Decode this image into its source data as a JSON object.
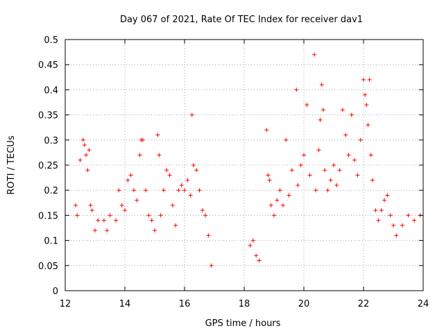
{
  "chart_data": {
    "type": "scatter",
    "title": "Day 067 of 2021, Rate Of TEC Index for receiver dav1",
    "xlabel": "GPS time / hours",
    "ylabel": "ROTI / TECUs",
    "xlim": [
      12,
      24
    ],
    "ylim": [
      0,
      0.5
    ],
    "x_ticks": [
      12,
      14,
      16,
      18,
      20,
      22,
      24
    ],
    "x_tick_labels": [
      "12",
      "14",
      "16",
      "18",
      "20",
      "22",
      "24"
    ],
    "y_ticks": [
      0,
      0.05,
      0.1,
      0.15,
      0.2,
      0.25,
      0.3,
      0.35,
      0.4,
      0.45,
      0.5
    ],
    "y_tick_labels": [
      "0",
      "0.05",
      "0.1",
      "0.15",
      "0.2",
      "0.25",
      "0.3",
      "0.35",
      "0.4",
      "0.45",
      "0.5"
    ],
    "grid": true,
    "marker": "+",
    "color": "#ff0000",
    "series": [
      {
        "points": [
          [
            12.35,
            0.17
          ],
          [
            12.4,
            0.15
          ],
          [
            12.5,
            0.26
          ],
          [
            12.6,
            0.3
          ],
          [
            12.65,
            0.29
          ],
          [
            12.7,
            0.27
          ],
          [
            12.75,
            0.24
          ],
          [
            12.8,
            0.28
          ],
          [
            12.85,
            0.17
          ],
          [
            12.9,
            0.16
          ],
          [
            13.0,
            0.12
          ],
          [
            13.1,
            0.14
          ],
          [
            13.3,
            0.14
          ],
          [
            13.4,
            0.12
          ],
          [
            13.5,
            0.15
          ],
          [
            13.7,
            0.14
          ],
          [
            13.8,
            0.2
          ],
          [
            13.9,
            0.17
          ],
          [
            14.0,
            0.16
          ],
          [
            14.1,
            0.22
          ],
          [
            14.2,
            0.23
          ],
          [
            14.3,
            0.2
          ],
          [
            14.4,
            0.18
          ],
          [
            14.5,
            0.27
          ],
          [
            14.55,
            0.3
          ],
          [
            14.6,
            0.3
          ],
          [
            14.7,
            0.2
          ],
          [
            14.8,
            0.15
          ],
          [
            14.9,
            0.14
          ],
          [
            15.0,
            0.12
          ],
          [
            15.1,
            0.31
          ],
          [
            15.15,
            0.27
          ],
          [
            15.2,
            0.15
          ],
          [
            15.3,
            0.2
          ],
          [
            15.4,
            0.24
          ],
          [
            15.5,
            0.23
          ],
          [
            15.6,
            0.17
          ],
          [
            15.7,
            0.13
          ],
          [
            15.8,
            0.2
          ],
          [
            15.9,
            0.21
          ],
          [
            16.0,
            0.2
          ],
          [
            16.1,
            0.22
          ],
          [
            16.2,
            0.19
          ],
          [
            16.25,
            0.35
          ],
          [
            16.3,
            0.25
          ],
          [
            16.4,
            0.24
          ],
          [
            16.5,
            0.2
          ],
          [
            16.6,
            0.16
          ],
          [
            16.7,
            0.15
          ],
          [
            16.8,
            0.11
          ],
          [
            16.9,
            0.05
          ],
          [
            18.2,
            0.09
          ],
          [
            18.3,
            0.1
          ],
          [
            18.4,
            0.07
          ],
          [
            18.5,
            0.06
          ],
          [
            18.75,
            0.32
          ],
          [
            18.8,
            0.23
          ],
          [
            18.85,
            0.22
          ],
          [
            18.9,
            0.17
          ],
          [
            19.0,
            0.15
          ],
          [
            19.1,
            0.18
          ],
          [
            19.2,
            0.2
          ],
          [
            19.3,
            0.17
          ],
          [
            19.4,
            0.3
          ],
          [
            19.5,
            0.19
          ],
          [
            19.6,
            0.24
          ],
          [
            19.75,
            0.4
          ],
          [
            19.8,
            0.21
          ],
          [
            19.9,
            0.25
          ],
          [
            20.0,
            0.27
          ],
          [
            20.1,
            0.37
          ],
          [
            20.2,
            0.23
          ],
          [
            20.35,
            0.47
          ],
          [
            20.4,
            0.2
          ],
          [
            20.5,
            0.28
          ],
          [
            20.55,
            0.34
          ],
          [
            20.6,
            0.41
          ],
          [
            20.65,
            0.36
          ],
          [
            20.7,
            0.24
          ],
          [
            20.8,
            0.2
          ],
          [
            20.9,
            0.22
          ],
          [
            21.0,
            0.25
          ],
          [
            21.1,
            0.21
          ],
          [
            21.2,
            0.24
          ],
          [
            21.3,
            0.36
          ],
          [
            21.4,
            0.31
          ],
          [
            21.5,
            0.27
          ],
          [
            21.6,
            0.35
          ],
          [
            21.7,
            0.26
          ],
          [
            21.8,
            0.23
          ],
          [
            21.9,
            0.3
          ],
          [
            22.0,
            0.42
          ],
          [
            22.05,
            0.39
          ],
          [
            22.1,
            0.37
          ],
          [
            22.15,
            0.33
          ],
          [
            22.2,
            0.42
          ],
          [
            22.25,
            0.27
          ],
          [
            22.3,
            0.22
          ],
          [
            22.4,
            0.16
          ],
          [
            22.5,
            0.14
          ],
          [
            22.6,
            0.16
          ],
          [
            22.7,
            0.18
          ],
          [
            22.8,
            0.19
          ],
          [
            22.9,
            0.15
          ],
          [
            23.0,
            0.13
          ],
          [
            23.1,
            0.11
          ],
          [
            23.3,
            0.13
          ],
          [
            23.5,
            0.15
          ],
          [
            23.7,
            0.14
          ],
          [
            23.9,
            0.15
          ]
        ]
      }
    ]
  }
}
